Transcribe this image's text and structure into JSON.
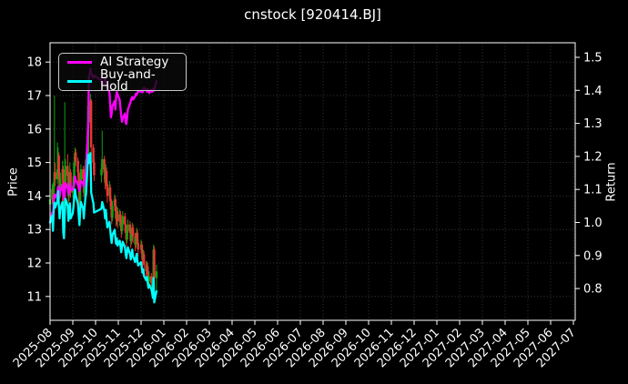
{
  "title": "cnstock [920414.BJ]",
  "legend": {
    "items": [
      {
        "label": "AI Strategy",
        "color": "#ff00ff"
      },
      {
        "label": "Buy-and-Hold",
        "color": "#00ffff"
      }
    ]
  },
  "chart_data": {
    "type": "candlestick",
    "title": "cnstock [920414.BJ]",
    "background": "#000000",
    "grid": true,
    "legend_position": "upper left",
    "price_axis": {
      "label": "Price",
      "ticks": [
        11,
        12,
        13,
        14,
        15,
        16,
        17,
        18
      ],
      "ylim": [
        10.3,
        18.6
      ]
    },
    "return_axis": {
      "label": "Return",
      "ticks": [
        0.8,
        0.9,
        1.0,
        1.1,
        1.2,
        1.3,
        1.4,
        1.5
      ],
      "ylim": [
        0.7,
        1.55
      ]
    },
    "x_axis": {
      "tick_labels": [
        "2025-08",
        "2025-09",
        "2025-10",
        "2025-11",
        "2025-12",
        "2026-01",
        "2026-02",
        "2026-03",
        "2026-04",
        "2026-05",
        "2026-06",
        "2026-07",
        "2026-08",
        "2026-09",
        "2026-10",
        "2026-11",
        "2026-12",
        "2027-01",
        "2027-02",
        "2027-03",
        "2027-04",
        "2027-05",
        "2027-06",
        "2027-07"
      ],
      "data_start": "2025-08-01",
      "data_end": "2025-12-22"
    },
    "colors": {
      "up": "#0fa30f",
      "down": "#ee3434",
      "ai_strategy": "#ff00ff",
      "buy_and_hold": "#00ffff",
      "grid": "#4d4d4d",
      "spine": "#ffffff",
      "text": "#ffffff"
    },
    "candles": [
      [
        "2025-08-01",
        13.75,
        14.1,
        13.5,
        13.9
      ],
      [
        "2025-08-04",
        13.9,
        14.35,
        13.75,
        14.21
      ],
      [
        "2025-08-05",
        14.21,
        14.3,
        13.65,
        13.82
      ],
      [
        "2025-08-06",
        13.85,
        14.55,
        13.8,
        14.4
      ],
      [
        "2025-08-07",
        14.4,
        17.0,
        14.2,
        14.71
      ],
      [
        "2025-08-08",
        14.71,
        15.0,
        14.3,
        14.5
      ],
      [
        "2025-08-11",
        14.5,
        15.6,
        14.35,
        14.8
      ],
      [
        "2025-08-12",
        14.8,
        15.45,
        14.6,
        15.21
      ],
      [
        "2025-08-13",
        15.21,
        15.3,
        14.4,
        14.6
      ],
      [
        "2025-08-14",
        14.6,
        14.85,
        13.9,
        14.1
      ],
      [
        "2025-08-15",
        14.1,
        14.7,
        13.95,
        14.5
      ],
      [
        "2025-08-18",
        14.5,
        15.05,
        14.3,
        14.8
      ],
      [
        "2025-08-19",
        14.8,
        14.9,
        13.55,
        13.71
      ],
      [
        "2025-08-20",
        13.71,
        14.0,
        13.3,
        13.46
      ],
      [
        "2025-08-21",
        13.46,
        16.8,
        13.4,
        14.21
      ],
      [
        "2025-08-22",
        14.21,
        15.1,
        14.1,
        14.9
      ],
      [
        "2025-08-25",
        14.9,
        15.25,
        14.45,
        14.6
      ],
      [
        "2025-08-26",
        14.6,
        14.75,
        13.8,
        14.0
      ],
      [
        "2025-08-27",
        14.0,
        14.6,
        13.85,
        14.4
      ],
      [
        "2025-08-28",
        14.4,
        15.0,
        14.25,
        14.71
      ],
      [
        "2025-08-29",
        14.71,
        14.8,
        13.95,
        14.1
      ],
      [
        "2025-09-01",
        14.1,
        14.5,
        13.95,
        14.3
      ],
      [
        "2025-09-02",
        14.3,
        14.8,
        14.15,
        14.6
      ],
      [
        "2025-09-03",
        14.6,
        15.2,
        14.5,
        15.0
      ],
      [
        "2025-09-04",
        15.0,
        15.45,
        14.85,
        15.3
      ],
      [
        "2025-09-05",
        15.3,
        15.4,
        14.9,
        15.05
      ],
      [
        "2025-09-08",
        15.05,
        15.15,
        14.55,
        14.7
      ],
      [
        "2025-09-09",
        14.7,
        14.8,
        14.05,
        14.21
      ],
      [
        "2025-09-10",
        14.21,
        14.3,
        13.6,
        13.8
      ],
      [
        "2025-09-11",
        13.8,
        14.55,
        13.7,
        14.4
      ],
      [
        "2025-09-12",
        14.4,
        14.95,
        14.25,
        14.8
      ],
      [
        "2025-09-15",
        14.8,
        14.9,
        14.35,
        14.5
      ],
      [
        "2025-09-16",
        14.5,
        14.6,
        13.95,
        14.1
      ],
      [
        "2025-09-17",
        14.1,
        14.7,
        14.0,
        14.55
      ],
      [
        "2025-09-18",
        14.55,
        15.05,
        14.4,
        14.9
      ],
      [
        "2025-09-19",
        14.9,
        15.3,
        14.7,
        15.1
      ],
      [
        "2025-09-22",
        15.15,
        17.25,
        15.0,
        16.7
      ],
      [
        "2025-09-23",
        16.7,
        16.85,
        16.1,
        16.4
      ],
      [
        "2025-09-24",
        16.4,
        16.8,
        16.2,
        16.6
      ],
      [
        "2025-09-25",
        16.6,
        17.05,
        16.4,
        16.85
      ],
      [
        "2025-09-26",
        16.85,
        16.9,
        15.2,
        15.45
      ],
      [
        "2025-09-29",
        15.45,
        15.55,
        14.8,
        15.0
      ],
      [
        "2025-09-30",
        15.0,
        15.1,
        14.45,
        14.62
      ],
      [
        "2025-10-09",
        14.62,
        15.0,
        14.4,
        14.8
      ],
      [
        "2025-10-10",
        14.8,
        15.95,
        14.65,
        15.1
      ],
      [
        "2025-10-13",
        15.1,
        15.2,
        14.5,
        14.7
      ],
      [
        "2025-10-14",
        14.7,
        14.8,
        14.2,
        14.4
      ],
      [
        "2025-10-15",
        14.4,
        14.95,
        14.3,
        14.75
      ],
      [
        "2025-10-16",
        14.75,
        14.85,
        14.15,
        14.35
      ],
      [
        "2025-10-17",
        14.35,
        14.45,
        13.8,
        14.0
      ],
      [
        "2025-10-20",
        14.0,
        14.45,
        13.85,
        14.25
      ],
      [
        "2025-10-21",
        14.25,
        14.35,
        13.7,
        13.9
      ],
      [
        "2025-10-22",
        13.9,
        14.0,
        13.4,
        13.6
      ],
      [
        "2025-10-23",
        13.6,
        13.7,
        13.15,
        13.35
      ],
      [
        "2025-10-24",
        13.35,
        13.85,
        13.25,
        13.7
      ],
      [
        "2025-10-27",
        13.7,
        14.05,
        13.55,
        13.9
      ],
      [
        "2025-10-28",
        13.9,
        14.0,
        13.35,
        13.55
      ],
      [
        "2025-10-29",
        13.55,
        13.65,
        13.1,
        13.3
      ],
      [
        "2025-10-30",
        13.3,
        13.7,
        13.15,
        13.55
      ],
      [
        "2025-10-31",
        13.55,
        13.65,
        13.05,
        13.25
      ],
      [
        "2025-11-03",
        13.25,
        13.6,
        13.1,
        13.45
      ],
      [
        "2025-11-04",
        13.45,
        13.55,
        13.0,
        13.2
      ],
      [
        "2025-11-05",
        13.2,
        13.3,
        12.75,
        12.95
      ],
      [
        "2025-11-06",
        12.95,
        13.3,
        12.85,
        13.15
      ],
      [
        "2025-11-07",
        13.15,
        13.55,
        13.0,
        13.4
      ],
      [
        "2025-11-10",
        13.4,
        13.5,
        12.95,
        13.15
      ],
      [
        "2025-11-11",
        13.15,
        13.25,
        12.7,
        12.9
      ],
      [
        "2025-11-12",
        12.9,
        13.0,
        12.5,
        12.7
      ],
      [
        "2025-11-13",
        12.7,
        13.1,
        12.6,
        12.95
      ],
      [
        "2025-11-14",
        12.95,
        13.3,
        12.85,
        13.15
      ],
      [
        "2025-11-17",
        13.15,
        13.25,
        12.7,
        12.9
      ],
      [
        "2025-11-18",
        12.9,
        13.0,
        12.45,
        12.65
      ],
      [
        "2025-11-19",
        12.65,
        13.0,
        12.55,
        12.85
      ],
      [
        "2025-11-20",
        12.85,
        13.2,
        12.7,
        13.05
      ],
      [
        "2025-11-21",
        13.05,
        13.15,
        12.6,
        12.8
      ],
      [
        "2025-11-24",
        12.8,
        12.9,
        12.35,
        12.55
      ],
      [
        "2025-11-25",
        12.55,
        12.9,
        12.45,
        12.75
      ],
      [
        "2025-11-26",
        12.75,
        13.05,
        12.6,
        12.9
      ],
      [
        "2025-11-27",
        12.9,
        13.0,
        12.4,
        12.6
      ],
      [
        "2025-11-28",
        12.6,
        12.7,
        12.2,
        12.4
      ],
      [
        "2025-12-01",
        12.4,
        12.7,
        12.3,
        12.55
      ],
      [
        "2025-12-02",
        12.55,
        12.65,
        12.1,
        12.3
      ],
      [
        "2025-12-03",
        12.3,
        12.4,
        11.9,
        12.1
      ],
      [
        "2025-12-04",
        12.1,
        12.4,
        12.0,
        12.25
      ],
      [
        "2025-12-05",
        12.25,
        12.35,
        11.75,
        11.95
      ],
      [
        "2025-12-08",
        11.95,
        12.05,
        11.55,
        11.75
      ],
      [
        "2025-12-09",
        11.75,
        12.05,
        11.65,
        11.9
      ],
      [
        "2025-12-10",
        11.9,
        12.0,
        11.45,
        11.65
      ],
      [
        "2025-12-11",
        11.65,
        11.75,
        11.25,
        11.45
      ],
      [
        "2025-12-12",
        11.45,
        11.75,
        11.35,
        11.6
      ],
      [
        "2025-12-15",
        11.6,
        11.7,
        11.2,
        11.4
      ],
      [
        "2025-12-16",
        11.4,
        11.5,
        11.05,
        11.25
      ],
      [
        "2025-12-17",
        11.25,
        11.6,
        11.1,
        11.5
      ],
      [
        "2025-12-18",
        11.5,
        12.55,
        11.4,
        12.4
      ],
      [
        "2025-12-19",
        12.4,
        12.5,
        11.4,
        11.55
      ],
      [
        "2025-12-22",
        11.55,
        11.95,
        11.15,
        11.75
      ]
    ],
    "series": [
      {
        "name": "AI Strategy",
        "color": "#ff00ff",
        "axis": "return",
        "values": [
          1.0,
          1.03,
          1.025,
          1.06,
          1.085,
          1.075,
          1.09,
          1.11,
          1.095,
          1.08,
          1.095,
          1.115,
          1.085,
          1.07,
          1.09,
          1.12,
          1.105,
          1.085,
          1.1,
          1.118,
          1.1,
          1.098,
          1.105,
          1.118,
          1.14,
          1.128,
          1.115,
          1.105,
          1.096,
          1.112,
          1.126,
          1.118,
          1.108,
          1.122,
          1.148,
          1.155,
          1.3,
          1.44,
          1.448,
          1.465,
          1.452,
          1.438,
          1.445,
          1.43,
          1.418,
          1.428,
          1.44,
          1.425,
          1.408,
          1.418,
          1.392,
          1.355,
          1.318,
          1.33,
          1.352,
          1.368,
          1.342,
          1.38,
          1.395,
          1.388,
          1.37,
          1.345,
          1.322,
          1.305,
          1.315,
          1.33,
          1.302,
          1.298,
          1.318,
          1.342,
          1.36,
          1.368,
          1.375,
          1.38,
          1.372,
          1.382,
          1.39,
          1.386,
          1.392,
          1.398,
          1.396,
          1.402,
          1.394,
          1.4,
          1.408,
          1.402,
          1.396,
          1.404,
          1.398,
          1.392,
          1.402,
          1.396,
          1.405,
          1.398,
          1.402,
          1.428
        ]
      },
      {
        "name": "Buy-and-Hold",
        "color": "#00ffff",
        "axis": "return",
        "values": [
          1.0,
          1.02,
          0.975,
          1.035,
          1.06,
          1.045,
          1.065,
          1.095,
          1.05,
          1.012,
          1.04,
          1.062,
          0.97,
          0.952,
          1.022,
          1.072,
          1.05,
          1.005,
          1.035,
          1.058,
          1.012,
          1.028,
          1.05,
          1.078,
          1.1,
          1.082,
          1.057,
          1.022,
          0.992,
          1.035,
          1.062,
          1.042,
          1.012,
          1.045,
          1.07,
          1.085,
          1.205,
          1.18,
          1.192,
          1.21,
          1.09,
          1.058,
          1.03,
          1.042,
          1.062,
          1.035,
          1.012,
          1.038,
          1.01,
          0.985,
          1.002,
          0.978,
          0.955,
          0.938,
          0.962,
          0.978,
          0.952,
          0.935,
          0.952,
          0.93,
          0.945,
          0.928,
          0.91,
          0.925,
          0.942,
          0.925,
          0.905,
          0.892,
          0.91,
          0.925,
          0.905,
          0.888,
          0.902,
          0.918,
          0.898,
          0.88,
          0.895,
          0.905,
          0.885,
          0.87,
          0.88,
          0.862,
          0.848,
          0.858,
          0.838,
          0.825,
          0.835,
          0.818,
          0.802,
          0.812,
          0.798,
          0.788,
          0.772,
          0.832,
          0.758,
          0.792
        ]
      }
    ]
  }
}
